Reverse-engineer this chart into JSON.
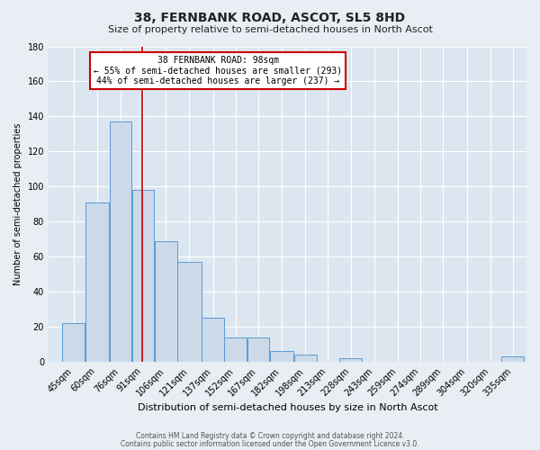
{
  "title": "38, FERNBANK ROAD, ASCOT, SL5 8HD",
  "subtitle": "Size of property relative to semi-detached houses in North Ascot",
  "xlabel": "Distribution of semi-detached houses by size in North Ascot",
  "ylabel": "Number of semi-detached properties",
  "bar_edges": [
    45,
    60,
    76,
    91,
    106,
    121,
    137,
    152,
    167,
    182,
    198,
    213,
    228,
    243,
    259,
    274,
    289,
    304,
    320,
    335,
    350
  ],
  "bar_heights": [
    22,
    91,
    137,
    98,
    69,
    57,
    25,
    14,
    14,
    6,
    4,
    0,
    2,
    0,
    0,
    0,
    0,
    0,
    0,
    3
  ],
  "bar_color": "#ccd9e8",
  "bar_edge_color": "#5b9bd5",
  "property_size": 98,
  "vline_color": "#cc0000",
  "annotation_title": "38 FERNBANK ROAD: 98sqm",
  "annotation_line1": "← 55% of semi-detached houses are smaller (293)",
  "annotation_line2": "44% of semi-detached houses are larger (237) →",
  "annotation_box_color": "#ffffff",
  "annotation_box_edge_color": "#cc0000",
  "ylim": [
    0,
    180
  ],
  "yticks": [
    0,
    20,
    40,
    60,
    80,
    100,
    120,
    140,
    160,
    180
  ],
  "footer1": "Contains HM Land Registry data © Crown copyright and database right 2024.",
  "footer2": "Contains public sector information licensed under the Open Government Licence v3.0.",
  "background_color": "#e8eef4",
  "plot_background_color": "#dce6f0",
  "title_fontsize": 10,
  "subtitle_fontsize": 8,
  "xlabel_fontsize": 8,
  "ylabel_fontsize": 7,
  "tick_fontsize": 7,
  "footer_fontsize": 5.5
}
